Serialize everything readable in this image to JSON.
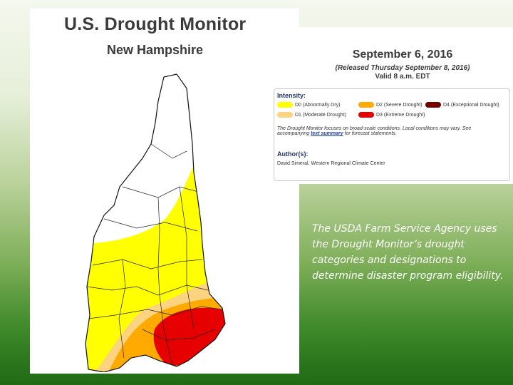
{
  "colors": {
    "d0": "#ffff00",
    "d1": "#fcd37f",
    "d2": "#ffaa00",
    "d3": "#e60000",
    "d4": "#730000",
    "none": "#ffffff"
  },
  "map": {
    "title": "U.S. Drought Monitor",
    "subtitle": "New Hampshire"
  },
  "info": {
    "date": "September 6, 2016",
    "released": "(Released Thursday September 8, 2016)",
    "valid": "Valid 8 a.m. EDT"
  },
  "legend": {
    "intensity_label": "Intensity:",
    "items": [
      {
        "key": "d0",
        "label": "D0 (Abnormally Dry)"
      },
      {
        "key": "d2",
        "label": "D2 (Severe Drought)"
      },
      {
        "key": "d4",
        "label": "D4 (Exceptional Drought)"
      },
      {
        "key": "d1",
        "label": "D1 (Moderate Drought)"
      },
      {
        "key": "d3",
        "label": "D3 (Extreme Drought)"
      }
    ],
    "note_part1": "The Drought Monitor focuses on broad-scale conditions. Local conditions may vary. See",
    "note_part2": "accompanying",
    "note_link": "text summary",
    "note_part3": "for forecast statements.",
    "author_label": "Author(s):",
    "author": "David Simeral, Western Regional Climate Center"
  },
  "caption": "The USDA Farm Service Agency uses the Drought Monitor’s drought categories and designations to determine disaster program eligibility."
}
